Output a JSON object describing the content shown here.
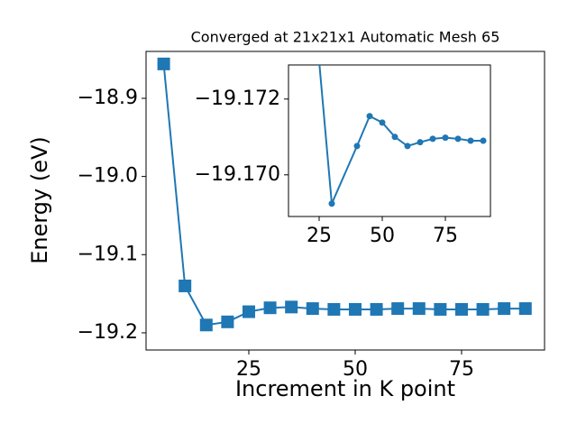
{
  "chart_data": [
    {
      "type": "line",
      "title": "Converged at 21x21x1 Automatic Mesh 65",
      "x_label": "Increment in K point",
      "y_label": "Energy (eV)",
      "x": [
        5,
        10,
        15,
        20,
        25,
        30,
        35,
        40,
        45,
        50,
        55,
        60,
        65,
        70,
        75,
        80,
        85,
        90
      ],
      "series": [
        {
          "color": "#1f77b4",
          "marker": "square",
          "values": [
            -18.856,
            -19.14,
            -19.19,
            -19.186,
            -19.173,
            -19.168,
            -19.167,
            -19.169,
            -19.17,
            -19.17,
            -19.17,
            -19.169,
            -19.169,
            -19.17,
            -19.17,
            -19.17,
            -19.169,
            -19.169
          ]
        }
      ],
      "xlim": [
        0.85,
        94.5
      ],
      "ylim": [
        -19.222,
        -18.84
      ],
      "xticks": [
        25,
        50,
        75
      ],
      "yticks": [
        {
          "value": -18.9,
          "label": "−18.9"
        },
        {
          "value": -19.0,
          "label": "−19.0"
        },
        {
          "value": -19.1,
          "label": "−19.1"
        },
        {
          "value": -19.2,
          "label": "−19.2"
        }
      ]
    },
    {
      "type": "line",
      "x": [
        25,
        30,
        40,
        45,
        50,
        55,
        60,
        65,
        70,
        75,
        80,
        85,
        90
      ],
      "series": [
        {
          "color": "#1f77b4",
          "marker": "circle",
          "values": [
            -19.173,
            -19.16924,
            -19.17076,
            -19.17155,
            -19.17138,
            -19.171,
            -19.17076,
            -19.17086,
            -19.17095,
            -19.17098,
            -19.17095,
            -19.1709,
            -19.1709
          ]
        }
      ],
      "xlim": [
        12.86,
        92.86
      ],
      "ylim": [
        -19.1689,
        -19.1729
      ],
      "xticks": [
        25,
        50,
        75
      ],
      "yticks": [
        {
          "value": -19.172,
          "label": "−19.172"
        },
        {
          "value": -19.17,
          "label": "−19.170"
        }
      ]
    }
  ]
}
